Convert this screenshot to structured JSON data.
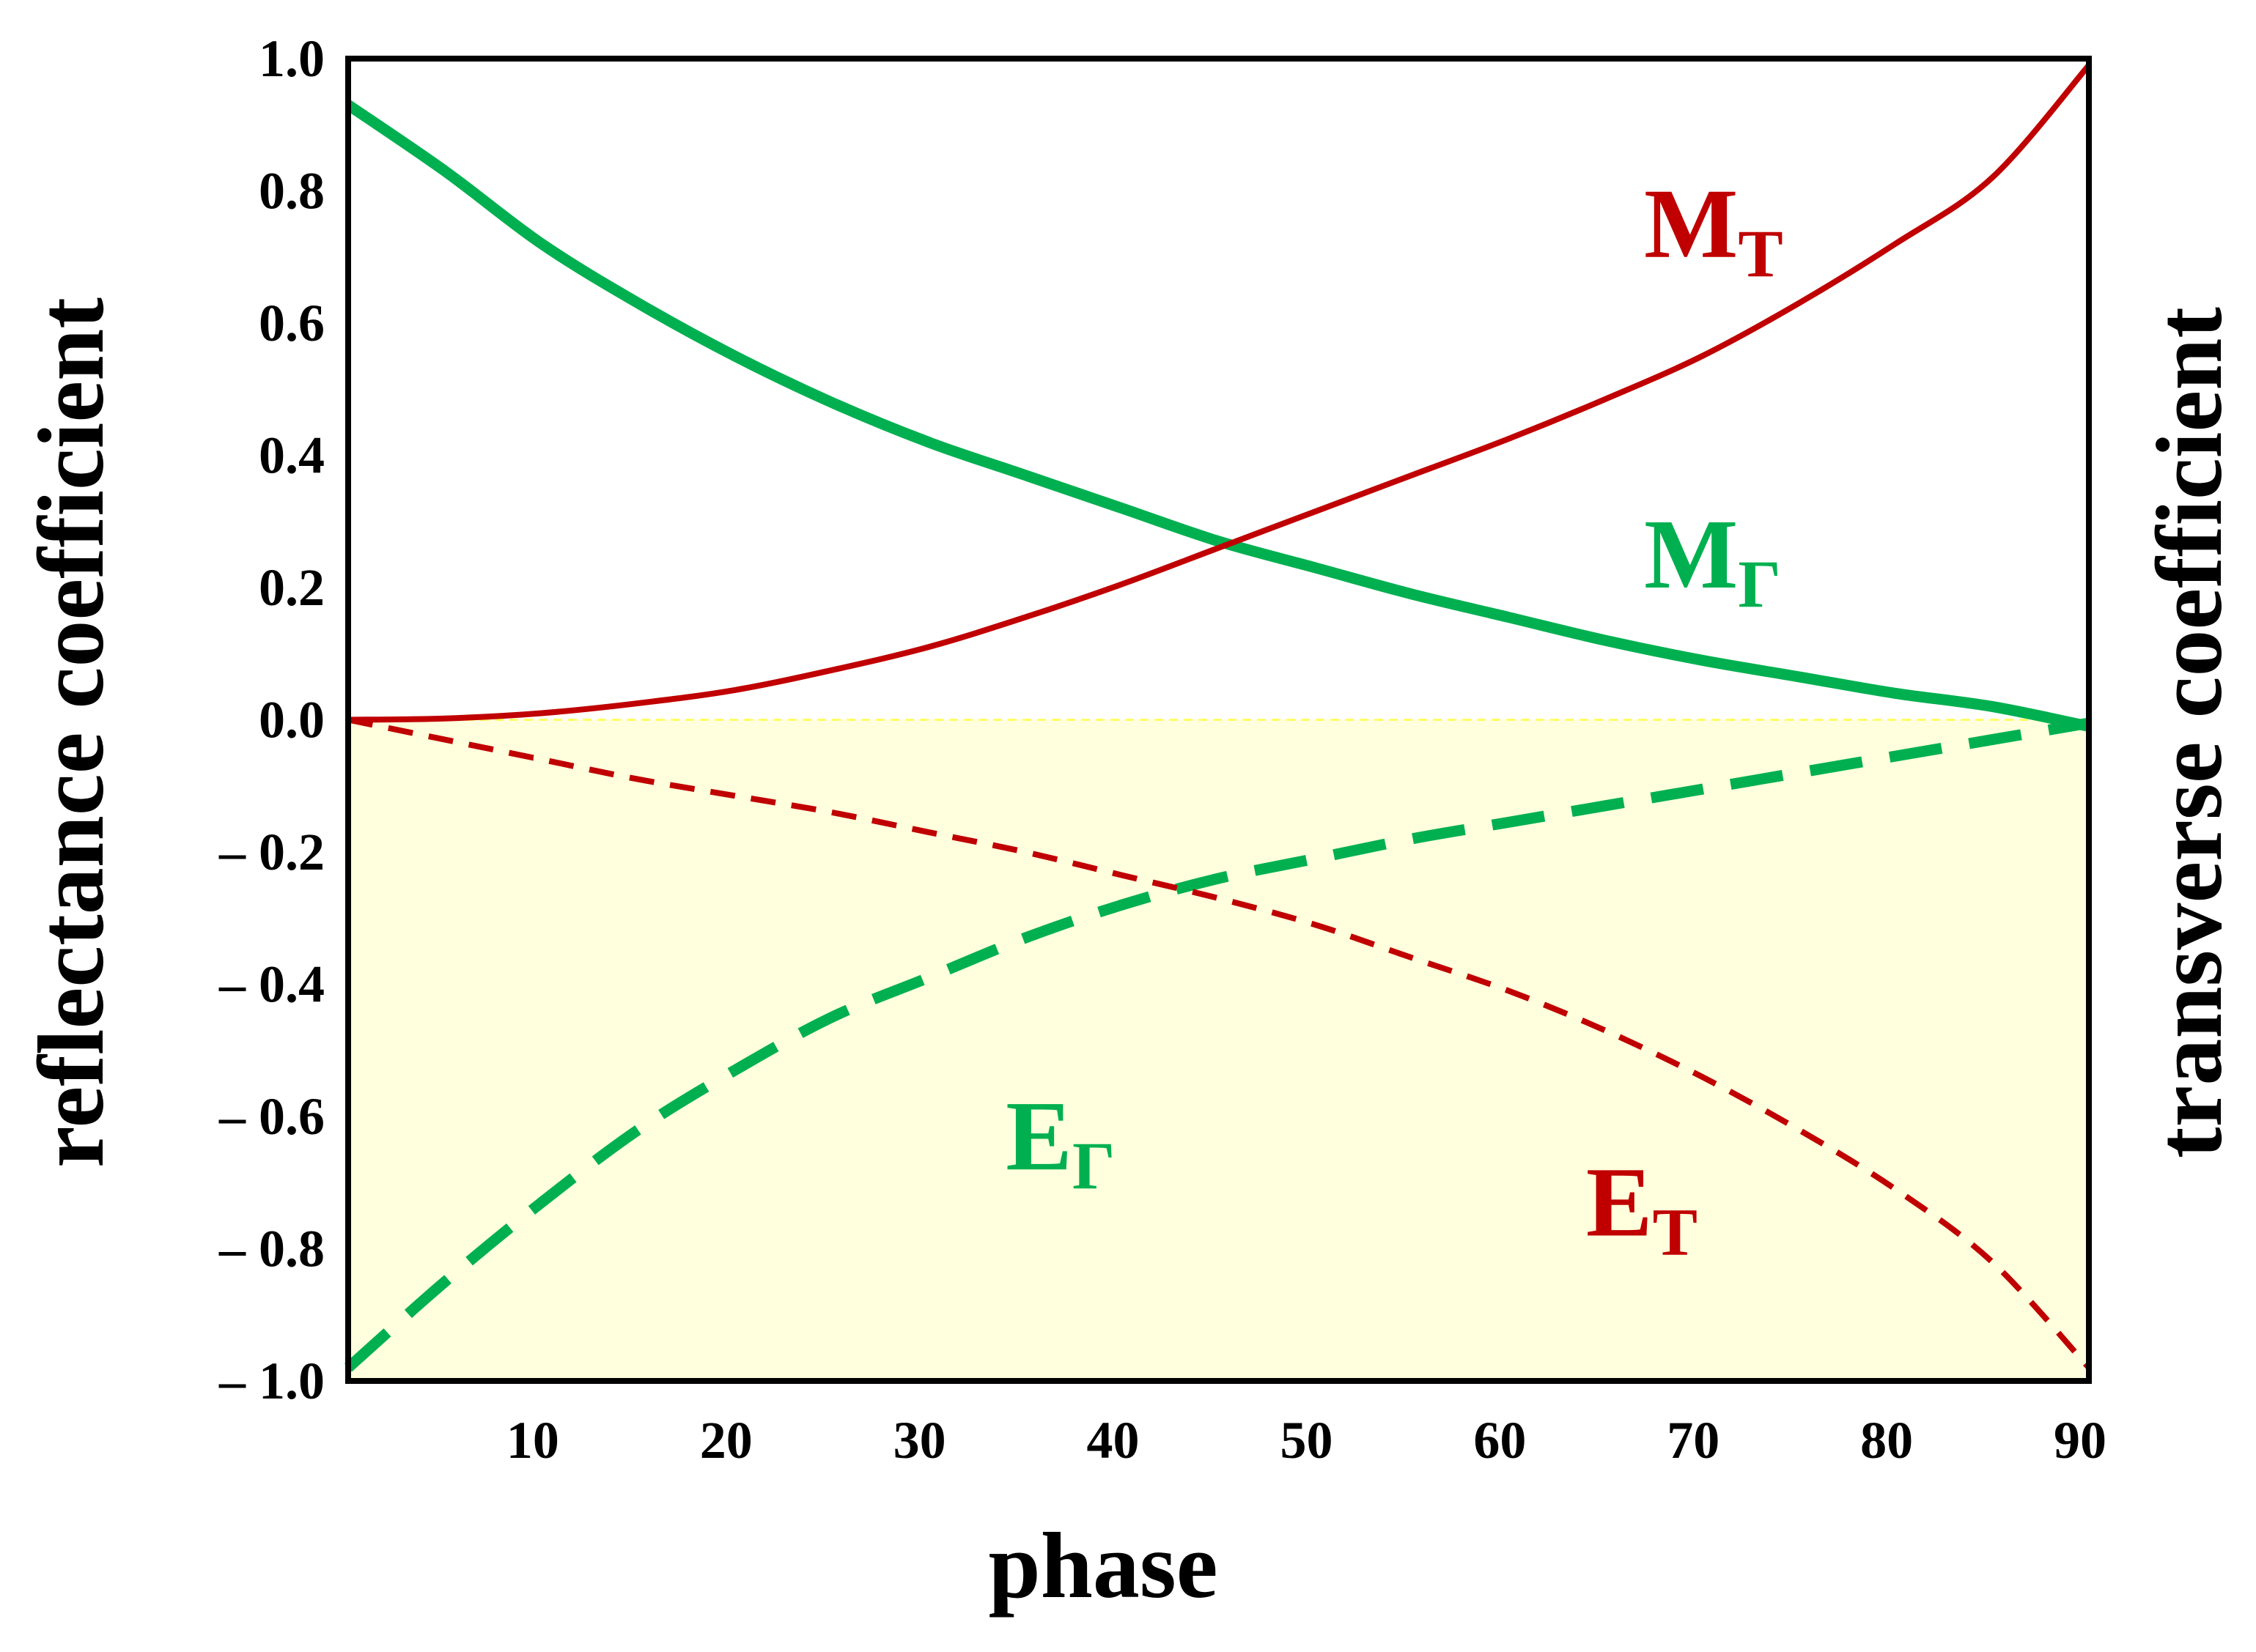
{
  "chart_data": {
    "type": "line",
    "title": "",
    "xlabel": "phase",
    "ylabel": "reflectance coefficient",
    "ylabel_right": "transverse coefficient",
    "xlim": [
      0,
      90
    ],
    "ylim": [
      -1.0,
      1.0
    ],
    "x_ticks": [
      10,
      20,
      30,
      40,
      50,
      60,
      70,
      80,
      90
    ],
    "x_tick_labels": [
      "10",
      "20",
      "30",
      "40",
      "50",
      "60",
      "70",
      "80",
      "90"
    ],
    "y_ticks": [
      1.0,
      0.8,
      0.6,
      0.4,
      0.2,
      0.0,
      -0.2,
      -0.4,
      -0.6,
      -0.8,
      -1.0
    ],
    "y_tick_labels": [
      "1.0",
      "0.8",
      "0.6",
      "0.4",
      "0.2",
      "0.0",
      "– 0.2",
      "– 0.4",
      "– 0.6",
      "– 0.8",
      "– 1.0"
    ],
    "shaded_region": {
      "from": -1.0,
      "to": 0.0,
      "color": "#ffffdd"
    },
    "zero_line_color": "#ffff66",
    "x": [
      0,
      5,
      10,
      15,
      20,
      25,
      30,
      35,
      40,
      45,
      50,
      55,
      60,
      65,
      70,
      75,
      80,
      85,
      90
    ],
    "series": [
      {
        "name": "M_Γ",
        "label_main": "M",
        "label_sub": "Γ",
        "label_at": [
          67,
          0.2
        ],
        "color": "#00b050",
        "style": "solid",
        "width": "thick",
        "values": [
          0.93,
          0.83,
          0.72,
          0.63,
          0.55,
          0.48,
          0.42,
          0.37,
          0.32,
          0.27,
          0.23,
          0.19,
          0.155,
          0.12,
          0.09,
          0.065,
          0.04,
          0.02,
          -0.01
        ]
      },
      {
        "name": "M_T",
        "label_main": "M",
        "label_sub": "T",
        "label_at": [
          67,
          0.7
        ],
        "color": "#c00000",
        "style": "solid",
        "width": "thin",
        "values": [
          0.0,
          0.002,
          0.01,
          0.025,
          0.045,
          0.075,
          0.11,
          0.155,
          0.205,
          0.26,
          0.315,
          0.37,
          0.425,
          0.485,
          0.55,
          0.63,
          0.72,
          0.82,
          0.99
        ]
      },
      {
        "name": "E_Γ",
        "label_main": "E",
        "label_sub": "Γ",
        "label_at": [
          34,
          -0.68
        ],
        "color": "#00b050",
        "style": "dashed",
        "width": "thick",
        "values": [
          -0.98,
          -0.85,
          -0.73,
          -0.62,
          -0.53,
          -0.45,
          -0.39,
          -0.33,
          -0.28,
          -0.24,
          -0.21,
          -0.18,
          -0.155,
          -0.13,
          -0.105,
          -0.08,
          -0.055,
          -0.03,
          -0.005
        ]
      },
      {
        "name": "E_T",
        "label_main": "E",
        "label_sub": "T",
        "label_at": [
          64,
          -0.78
        ],
        "color": "#c00000",
        "style": "dashed",
        "width": "thin",
        "values": [
          0.0,
          -0.03,
          -0.06,
          -0.09,
          -0.115,
          -0.14,
          -0.17,
          -0.2,
          -0.235,
          -0.27,
          -0.31,
          -0.36,
          -0.41,
          -0.47,
          -0.54,
          -0.62,
          -0.71,
          -0.82,
          -0.98
        ]
      }
    ]
  }
}
